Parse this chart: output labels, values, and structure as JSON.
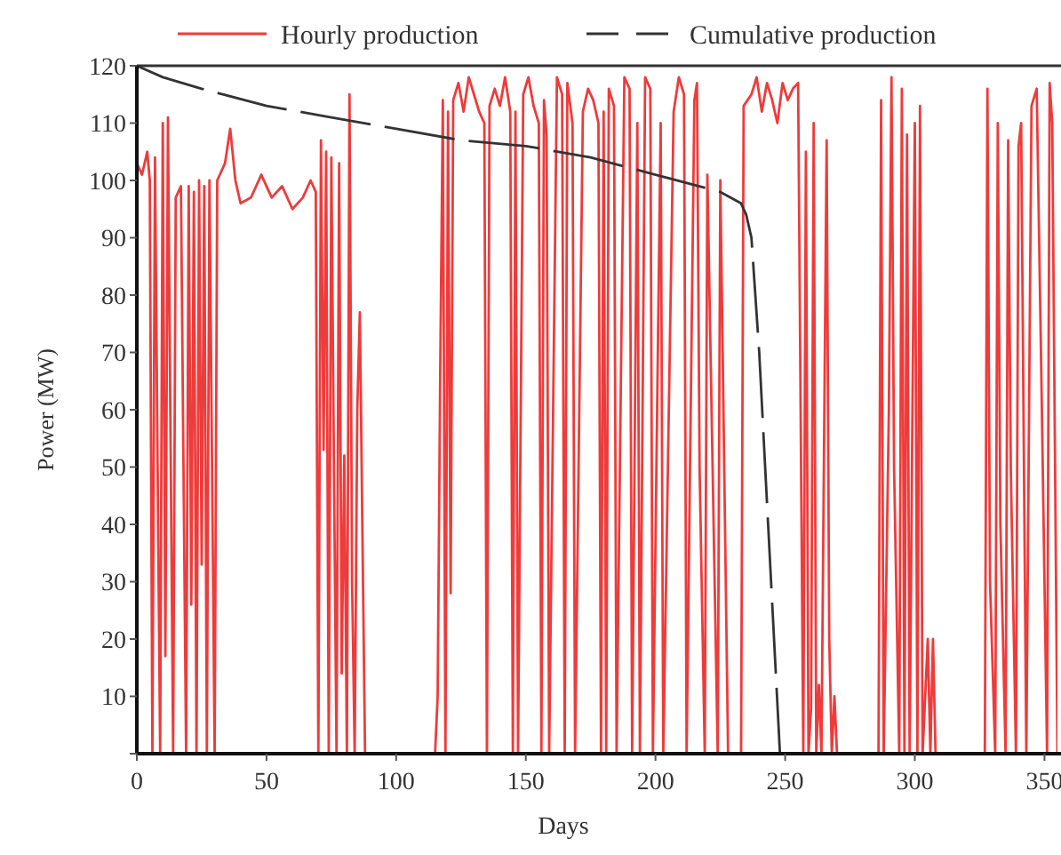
{
  "chart_data": {
    "type": "line",
    "xlabel": "Days",
    "ylabel": "Power (MW)",
    "xlim": [
      0,
      355
    ],
    "xticks": [
      0,
      50,
      100,
      150,
      200,
      250,
      300,
      350
    ],
    "ylim": [
      0,
      120
    ],
    "yticks": [
      {
        "value": 0,
        "label": null
      },
      10,
      20,
      30,
      40,
      50,
      60,
      70,
      80,
      90,
      100,
      110,
      120
    ],
    "legend": "top",
    "grid": false,
    "series": [
      {
        "name": "Hourly production",
        "color": "#ee3b3b",
        "line_style": "solid",
        "x": [
          0,
          2,
          4,
          5,
          6,
          7,
          8,
          9,
          10,
          11,
          12,
          13,
          14,
          15,
          17,
          19,
          20,
          21,
          22,
          23,
          24,
          25,
          26,
          27,
          28,
          29,
          30,
          31,
          34,
          36,
          38,
          40,
          44,
          48,
          52,
          56,
          60,
          64,
          67,
          69,
          70,
          71,
          72,
          73,
          74,
          75,
          76,
          77,
          78,
          79,
          80,
          81,
          82,
          83,
          84,
          85,
          86,
          87,
          88,
          115,
          116,
          117,
          118,
          119,
          120,
          121,
          122,
          124,
          126,
          128,
          130,
          132,
          134,
          135,
          136,
          138,
          140,
          142,
          144,
          145,
          146,
          147,
          149,
          151,
          153,
          155,
          156,
          157,
          158,
          159,
          162,
          164,
          165,
          166,
          168,
          169,
          172,
          174,
          176,
          178,
          179,
          180,
          181,
          182,
          184,
          185,
          188,
          190,
          191,
          193,
          194,
          196,
          198,
          199,
          202,
          203,
          207,
          209,
          211,
          212,
          215,
          216,
          217,
          219,
          220,
          224,
          225,
          228,
          233,
          234,
          237,
          239,
          241,
          243,
          245,
          247,
          249,
          251,
          253,
          255,
          257,
          258,
          259,
          260,
          261,
          262,
          263,
          264,
          266,
          267,
          268,
          269,
          270,
          271,
          286,
          287,
          288,
          290,
          291,
          292,
          294,
          295,
          296,
          297,
          298,
          300,
          301,
          302,
          303,
          305,
          306,
          307,
          308,
          309,
          327,
          328,
          329,
          331,
          332,
          333,
          335,
          336,
          337,
          339,
          340,
          341,
          343,
          345,
          347,
          349,
          351,
          352,
          353,
          355
        ],
        "values": [
          103,
          101,
          105,
          100,
          0,
          104,
          50,
          0,
          110,
          17,
          111,
          55,
          0,
          97,
          99,
          0,
          99,
          26,
          98,
          0,
          100,
          33,
          99,
          0,
          100,
          50,
          0,
          100,
          103,
          109,
          100,
          96,
          97,
          101,
          97,
          99,
          95,
          97,
          100,
          98,
          0,
          107,
          53,
          105,
          0,
          104,
          50,
          0,
          103,
          14,
          52,
          0,
          115,
          30,
          0,
          60,
          77,
          38,
          0,
          0,
          10,
          67,
          114,
          0,
          112,
          28,
          114,
          117,
          112,
          118,
          115,
          112,
          110,
          0,
          113,
          116,
          113,
          118,
          112,
          0,
          112,
          0,
          115,
          118,
          113,
          110,
          0,
          114,
          108,
          0,
          118,
          115,
          0,
          117,
          110,
          0,
          112,
          116,
          114,
          110,
          0,
          112,
          0,
          116,
          113,
          0,
          118,
          116,
          0,
          110,
          0,
          118,
          116,
          0,
          110,
          0,
          112,
          118,
          115,
          0,
          114,
          117,
          50,
          0,
          101,
          0,
          100,
          0,
          0,
          113,
          115,
          118,
          112,
          117,
          114,
          110,
          117,
          114,
          116,
          117,
          0,
          105,
          0,
          8,
          110,
          0,
          12,
          0,
          107,
          20,
          0,
          10,
          0,
          0,
          0,
          114,
          0,
          60,
          118,
          50,
          0,
          116,
          0,
          108,
          0,
          110,
          0,
          113,
          0,
          20,
          0,
          20,
          0,
          0,
          0,
          116,
          30,
          0,
          110,
          40,
          0,
          107,
          50,
          0,
          106,
          110,
          0,
          113,
          116,
          60,
          0,
          117,
          110,
          0
        ]
      },
      {
        "name": "Cumulative production",
        "color": "#333333",
        "line_style": "dashed",
        "x": [
          0,
          10,
          25,
          50,
          75,
          100,
          125,
          150,
          175,
          200,
          225,
          233,
          235,
          237,
          240,
          244,
          248
        ],
        "values": [
          120,
          118,
          116,
          113,
          111,
          109,
          107,
          106,
          104,
          101,
          98,
          96,
          94,
          90,
          70,
          35,
          0
        ]
      }
    ]
  }
}
